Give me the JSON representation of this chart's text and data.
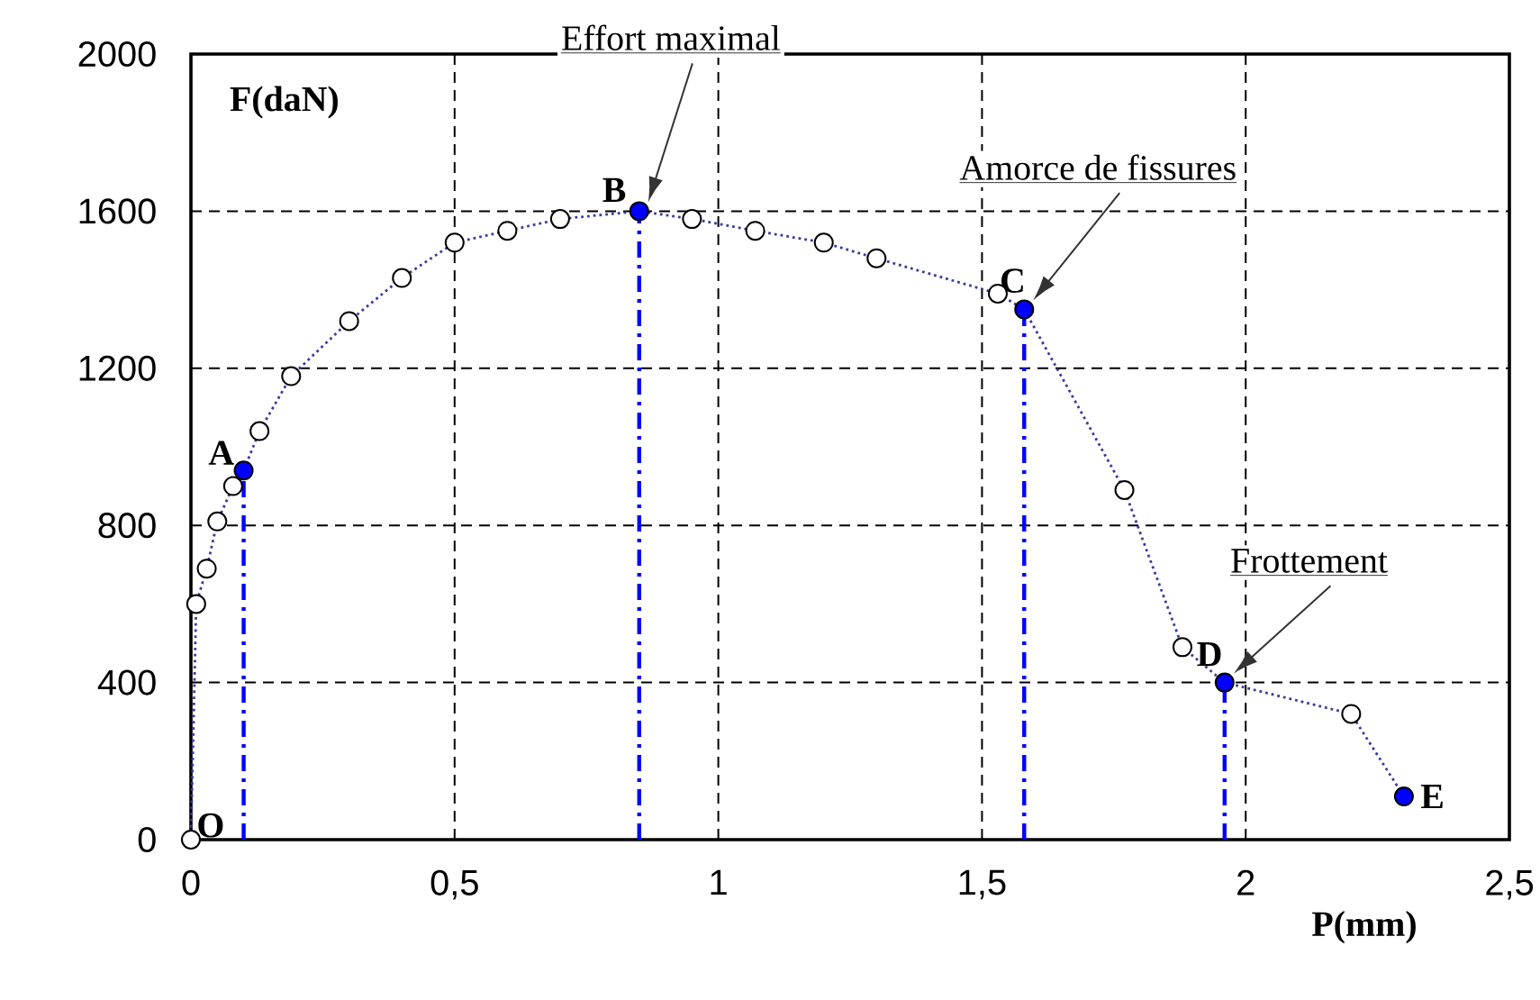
{
  "chart_data": {
    "type": "line",
    "xlabel": "P(mm)",
    "ylabel": "F(daN)",
    "xlim": [
      0,
      2.5
    ],
    "ylim": [
      0,
      2000
    ],
    "xticks": [
      0,
      {
        "value": 0.5,
        "label": "0,5"
      },
      1,
      {
        "value": 1.5,
        "label": "1,5"
      },
      2,
      {
        "value": 2.5,
        "label": "2,5"
      }
    ],
    "yticks": [
      0,
      400,
      800,
      1200,
      1600,
      2000
    ],
    "grid": true,
    "series": [
      {
        "color": "#3b3b9e",
        "line_style": "dotted",
        "marker": "none",
        "x": [
          0,
          0.01,
          0.03,
          0.05,
          0.08,
          0.1,
          0.13,
          0.19,
          0.3,
          0.4,
          0.5,
          0.6,
          0.7,
          0.85,
          0.95,
          1.07,
          1.2,
          1.3,
          1.53,
          1.58,
          1.77,
          1.88,
          1.96,
          2.2,
          2.3
        ],
        "values": [
          0,
          600,
          690,
          810,
          900,
          940,
          1040,
          1180,
          1320,
          1430,
          1520,
          1550,
          1580,
          1600,
          1580,
          1550,
          1520,
          1480,
          1390,
          1350,
          890,
          490,
          400,
          320,
          110
        ]
      },
      {
        "type": "scatter",
        "color": "#ffffff",
        "marker": "circle",
        "x": [
          0,
          0.01,
          0.03,
          0.05,
          0.08,
          0.13,
          0.19,
          0.3,
          0.4,
          0.5,
          0.6,
          0.7,
          0.95,
          1.07,
          1.2,
          1.3,
          1.53,
          1.77,
          1.88,
          2.2
        ],
        "values": [
          0,
          600,
          690,
          810,
          900,
          1040,
          1180,
          1320,
          1430,
          1520,
          1550,
          1580,
          1580,
          1550,
          1520,
          1480,
          1390,
          890,
          490,
          320
        ]
      },
      {
        "type": "scatter",
        "color": "#0000ff",
        "marker": "circle",
        "x": [
          0.1,
          0.85,
          1.58,
          1.96,
          2.3
        ],
        "values": [
          940,
          1600,
          1350,
          400,
          110
        ]
      },
      {
        "type": "line",
        "color": "#0000ff",
        "line_style": "dashdot",
        "marker": "none",
        "x": [
          0.1,
          0.1
        ],
        "values": [
          0,
          940
        ]
      },
      {
        "type": "line",
        "color": "#0000ff",
        "line_style": "dashdot",
        "marker": "none",
        "x": [
          0.85,
          0.85
        ],
        "values": [
          0,
          1600
        ]
      },
      {
        "type": "line",
        "color": "#0000ff",
        "line_style": "dashdot",
        "marker": "none",
        "x": [
          1.58,
          1.58
        ],
        "values": [
          0,
          1350
        ]
      },
      {
        "type": "line",
        "color": "#0000ff",
        "line_style": "dashdot",
        "marker": "none",
        "x": [
          1.96,
          1.96
        ],
        "values": [
          0,
          400
        ]
      }
    ],
    "annotations": [
      {
        "text": "O",
        "x": 0,
        "y": 0
      },
      {
        "text": "A",
        "x": 0.1,
        "y": 940
      },
      {
        "text": "B",
        "x": 0.85,
        "y": 1600
      },
      {
        "text": "C",
        "x": 1.58,
        "y": 1350
      },
      {
        "text": "D",
        "x": 1.96,
        "y": 400
      },
      {
        "text": "E",
        "x": 2.3,
        "y": 110
      },
      "Effort maximal",
      "Amorce de fissures",
      "Frottement"
    ]
  }
}
